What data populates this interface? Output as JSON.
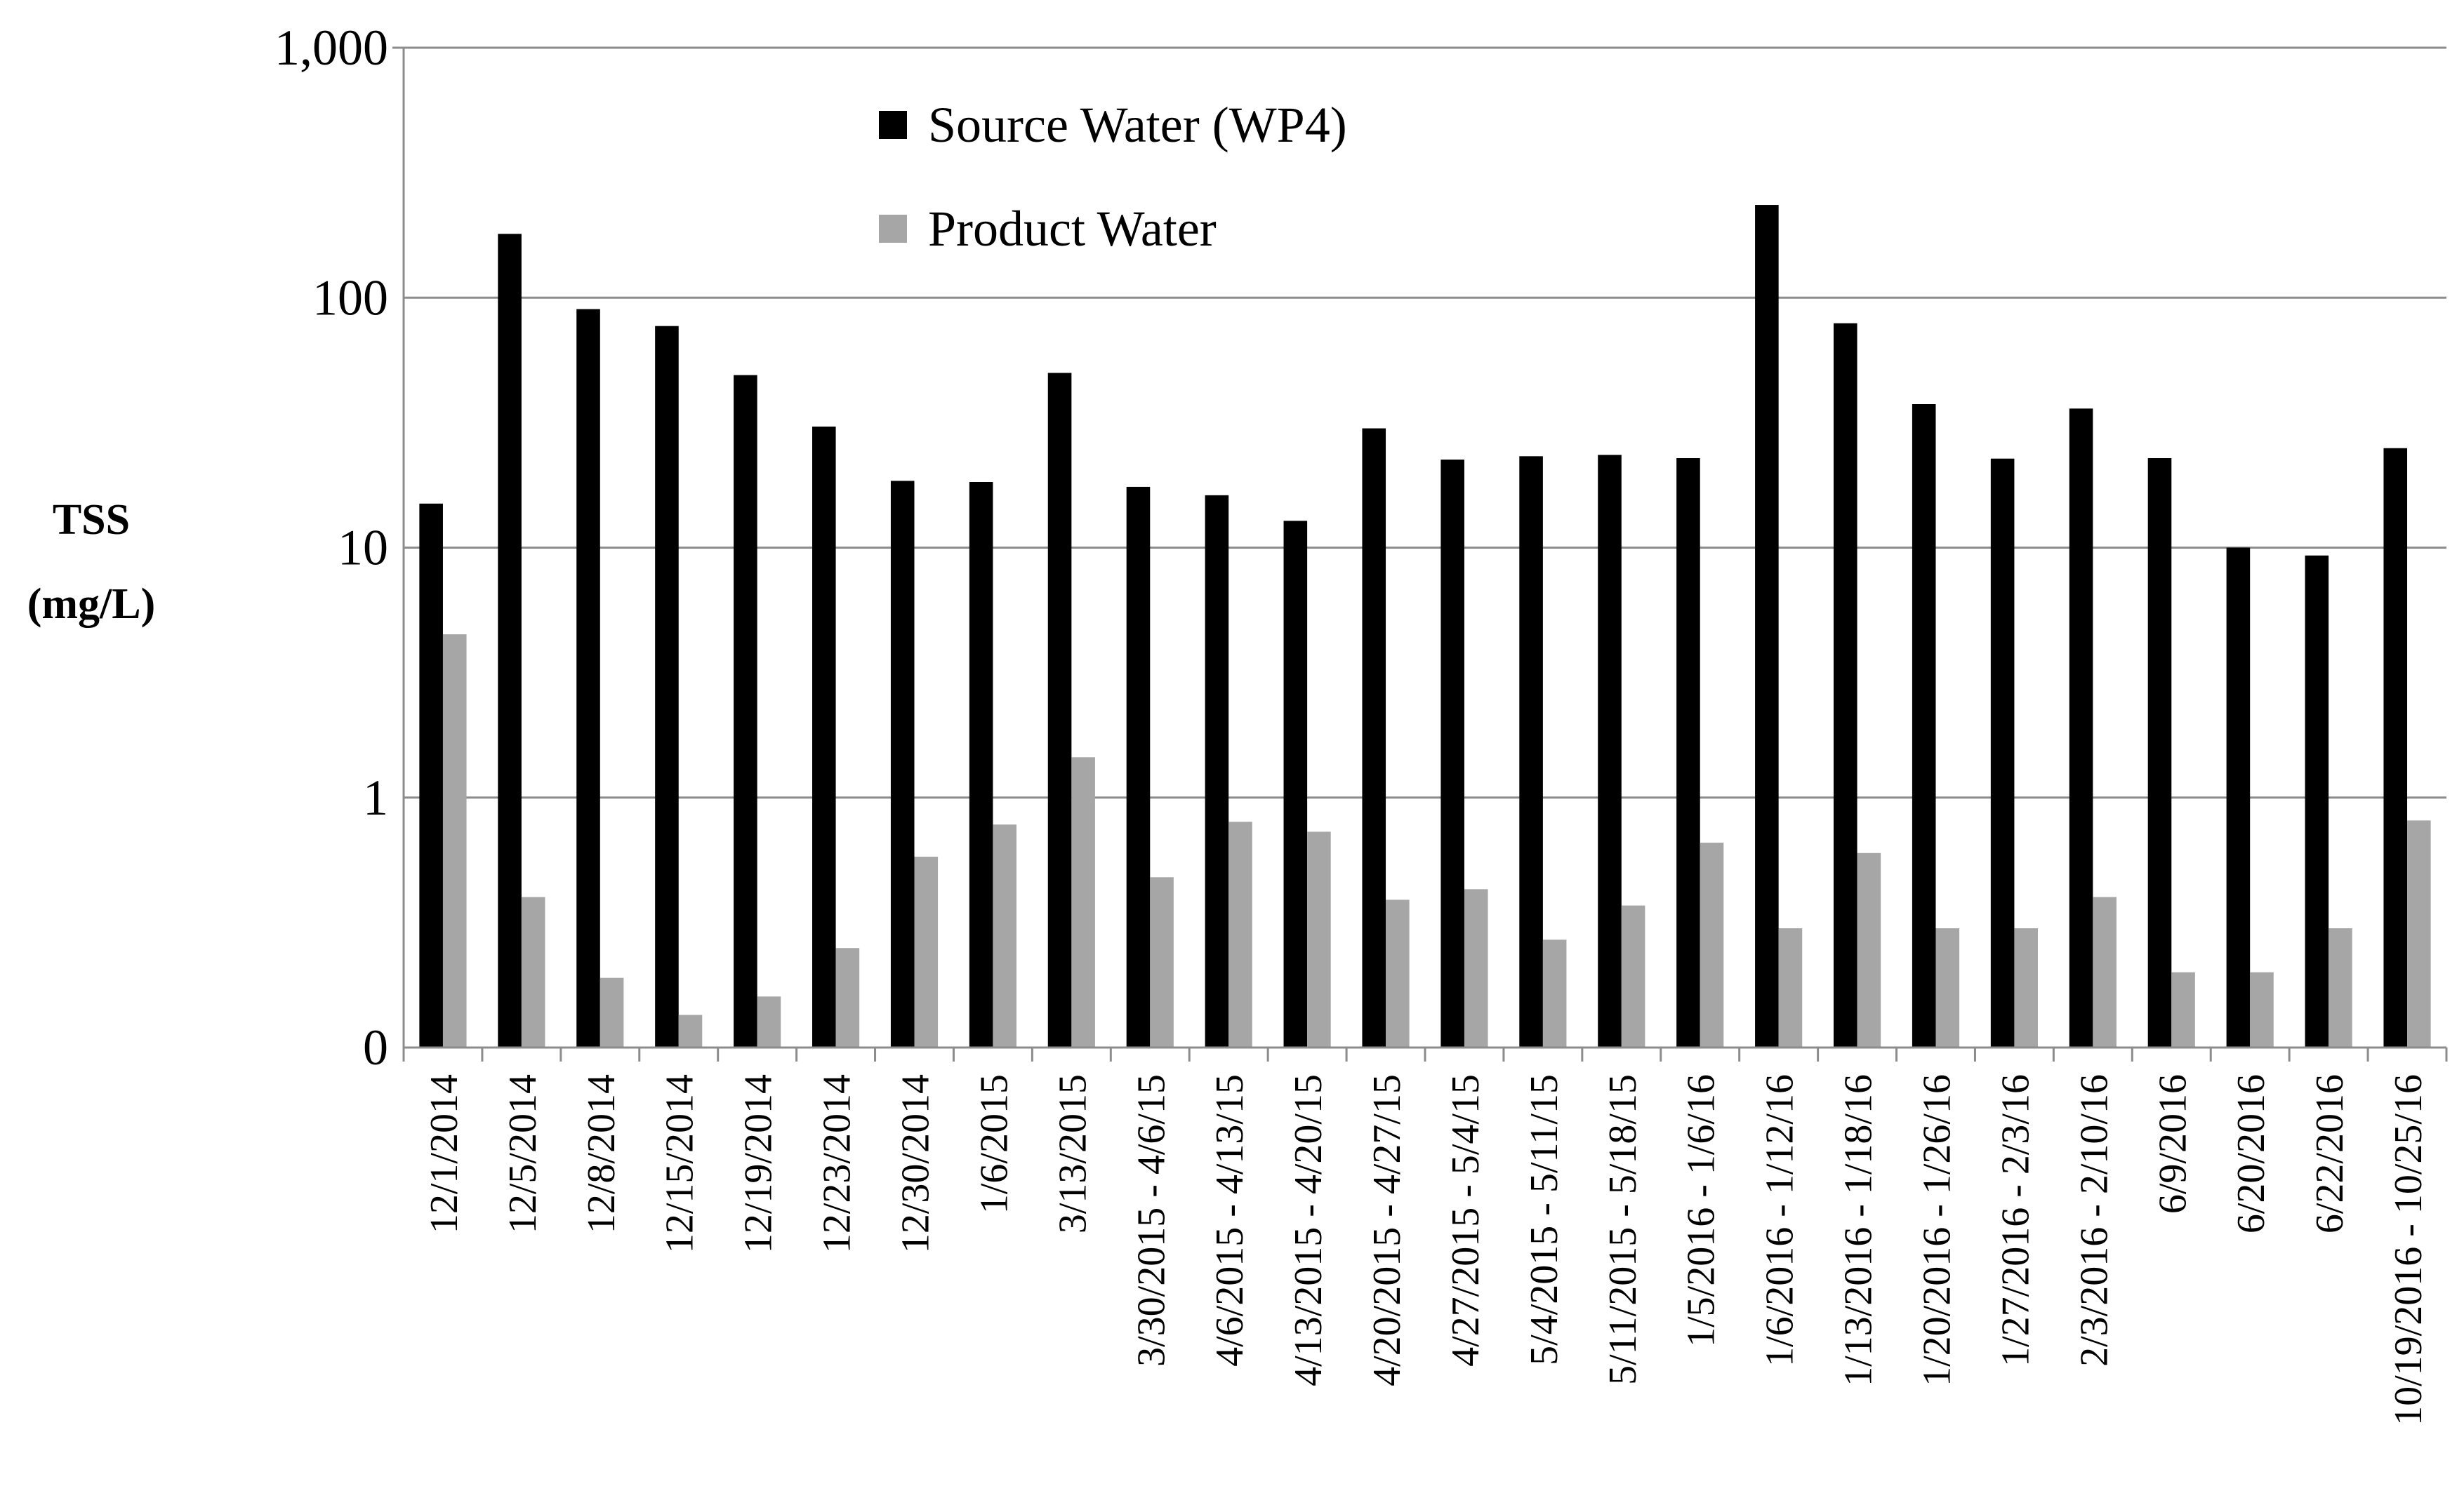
{
  "chart_data": {
    "type": "bar",
    "title": "",
    "xlabel": "",
    "ylabel_line1": "TSS",
    "ylabel_line2": "(mg/L)",
    "yscale": "log",
    "ylim": [
      0.1,
      1000
    ],
    "yticks": [
      0.1,
      1,
      10,
      100,
      1000
    ],
    "ytick_labels": [
      "0",
      "1",
      "10",
      "100",
      "1,000"
    ],
    "grid": true,
    "legend_position": "top-center",
    "categories": [
      "12/1/2014",
      "12/5/2014",
      "12/8/2014",
      "12/15/2014",
      "12/19/2014",
      "12/23/2014",
      "12/30/2014",
      "1/6/2015",
      "3/13/2015",
      "3/30/2015 - 4/6/15",
      "4/6/2015 - 4/13/15",
      "4/13/2015 - 4/20/15",
      "4/20/2015 - 4/27/15",
      "4/27/2015 - 5/4/15",
      "5/4/2015 - 5/11/15",
      "5/11/2015 - 5/18/15",
      "1/5/2016 - 1/6/16",
      "1/6/2016 - 1/12/16",
      "1/13/2016 - 1/18/16",
      "1/20/2016 - 1/26/16",
      "1/27/2016 - 2/3/16",
      "2/3/2016 - 2/10/16",
      "6/9/2016",
      "6/20/2016",
      "6/22/2016",
      "10/19/2016 - 10/25/16"
    ],
    "series": [
      {
        "name": "Source Water (WP4)",
        "color": "#000000",
        "values": [
          15,
          180,
          90,
          77,
          49,
          30.5,
          18.5,
          18.3,
          50,
          17.5,
          16.2,
          12.8,
          30,
          22.5,
          23.2,
          23.5,
          22.8,
          235,
          79,
          37.5,
          22.7,
          36,
          22.8,
          10,
          9.3,
          25
        ]
      },
      {
        "name": "Product Water",
        "color": "#a6a6a6",
        "values": [
          4.5,
          0.4,
          0.19,
          0.135,
          0.16,
          0.25,
          0.58,
          0.78,
          1.45,
          0.48,
          0.8,
          0.73,
          0.39,
          0.43,
          0.27,
          0.37,
          0.66,
          0.3,
          0.6,
          0.3,
          0.3,
          0.4,
          0.2,
          0.2,
          0.3,
          0.81
        ]
      }
    ]
  }
}
